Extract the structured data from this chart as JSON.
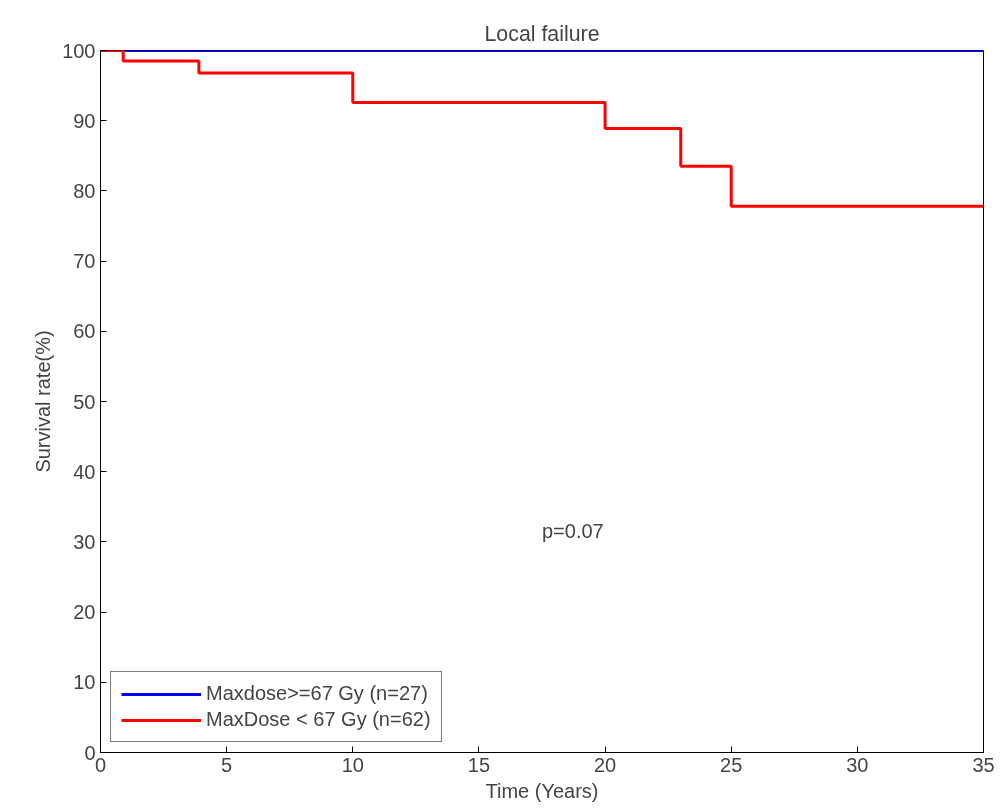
{
  "chart_data": {
    "type": "step",
    "title": "Local failure",
    "xlabel": "Time (Years)",
    "ylabel": "Survival rate(%)",
    "series": [
      {
        "name": "Maxdose>=67 Gy (n=27)",
        "color": "#0000ff",
        "x": [
          0,
          35
        ],
        "values": [
          100,
          100
        ]
      },
      {
        "name": "MaxDose < 67 Gy (n=62)",
        "color": "#ff0000",
        "x": [
          0,
          0.9,
          3.9,
          10,
          20,
          23,
          25,
          35
        ],
        "values": [
          100,
          98.5,
          96.8,
          92.6,
          88.9,
          83.5,
          77.8,
          77.8
        ]
      }
    ],
    "xlim": [
      0,
      35
    ],
    "ylim": [
      0,
      100
    ],
    "xticks": [
      0,
      5,
      10,
      15,
      20,
      25,
      30,
      35
    ],
    "yticks": [
      0,
      10,
      20,
      30,
      40,
      50,
      60,
      70,
      80,
      90,
      100
    ],
    "annotations": [
      "p=0.07"
    ],
    "grid": false,
    "legend": "bottom left",
    "line_style": "solid",
    "marker": "none"
  }
}
